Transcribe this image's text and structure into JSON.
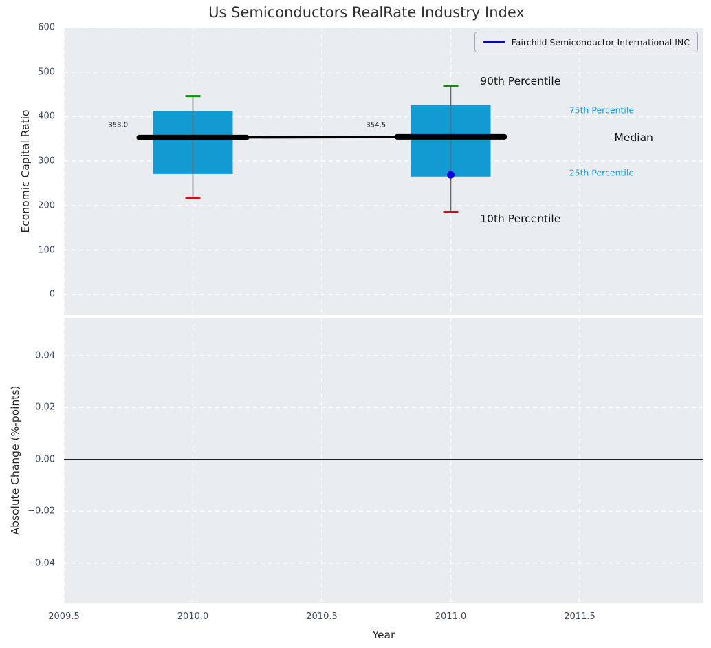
{
  "chart_data": {
    "type": "boxplot",
    "title": "Us Semiconductors RealRate Industry Index",
    "xlabel": "Year",
    "xlim": [
      2009.5,
      2011.98
    ],
    "x_ticks": [
      {
        "value": 2009.5,
        "label": "2009.5"
      },
      {
        "value": 2010.0,
        "label": "2010.0"
      },
      {
        "value": 2010.5,
        "label": "2010.5"
      },
      {
        "value": 2011.0,
        "label": "2011.0"
      },
      {
        "value": 2011.5,
        "label": "2011.5"
      }
    ],
    "grid": true,
    "legend": {
      "position": "upper right",
      "entries": [
        {
          "label": "Fairchild Semiconductor International INC",
          "color": "#0000e6"
        }
      ]
    },
    "panels": [
      {
        "name": "top",
        "ylabel": "Economic Capital Ratio",
        "ylim": [
          -46,
          600
        ],
        "y_ticks": [
          {
            "value": 0,
            "label": "0"
          },
          {
            "value": 100,
            "label": "100"
          },
          {
            "value": 200,
            "label": "200"
          },
          {
            "value": 300,
            "label": "300"
          },
          {
            "value": 400,
            "label": "400"
          },
          {
            "value": 500,
            "label": "500"
          },
          {
            "value": 600,
            "label": "600"
          }
        ]
      },
      {
        "name": "bottom",
        "ylabel": "Absolute Change (%-points)",
        "ylim": [
          -0.0555,
          0.0546
        ],
        "zero_line": 0,
        "y_ticks": [
          {
            "value": -0.04,
            "label": "−0.04"
          },
          {
            "value": -0.02,
            "label": "−0.02"
          },
          {
            "value": 0.0,
            "label": "0.00"
          },
          {
            "value": 0.02,
            "label": "0.02"
          },
          {
            "value": 0.04,
            "label": "0.04"
          }
        ],
        "series": []
      }
    ],
    "box_series": {
      "years": [
        2010,
        2011
      ],
      "boxes": [
        {
          "year": 2010,
          "p10": 217,
          "q1": 271,
          "median": 353.0,
          "q3": 413,
          "p90": 446
        },
        {
          "year": 2011,
          "p10": 185,
          "q1": 265,
          "median": 354.5,
          "q3": 426,
          "p90": 469,
          "company_value": 269
        }
      ],
      "median_line": [
        [
          2010,
          353.0
        ],
        [
          2011,
          354.5
        ]
      ]
    },
    "annotations": [
      {
        "text": "353.0",
        "x": 2009.71,
        "y": 381,
        "size": "xs",
        "color": "dark"
      },
      {
        "text": "354.5",
        "x": 2010.71,
        "y": 381,
        "size": "xs",
        "color": "dark"
      },
      {
        "text": "90th Percentile",
        "x": 2011.27,
        "y": 480,
        "size": "lg",
        "color": "dark"
      },
      {
        "text": "75th Percentile",
        "x": 2011.585,
        "y": 414,
        "size": "sm",
        "color": "cyan"
      },
      {
        "text": "Median",
        "x": 2011.71,
        "y": 353,
        "size": "lg",
        "color": "dark"
      },
      {
        "text": "25th Percentile",
        "x": 2011.585,
        "y": 274,
        "size": "sm",
        "color": "cyan"
      },
      {
        "text": "10th Percentile",
        "x": 2011.27,
        "y": 171,
        "size": "lg",
        "color": "dark"
      }
    ],
    "colors": {
      "box_fill": "#119bd2",
      "median": "#000000",
      "whisker": "#6a6a6a",
      "cap_high": "#0d8f0d",
      "cap_low": "#e60010",
      "company_point": "#0000e6",
      "grid": "#ffffff",
      "zero_line": "#000000",
      "cyan_text": "#1a9cd8",
      "dark_text": "#141414",
      "panel_bg": "#e9edf0"
    }
  }
}
